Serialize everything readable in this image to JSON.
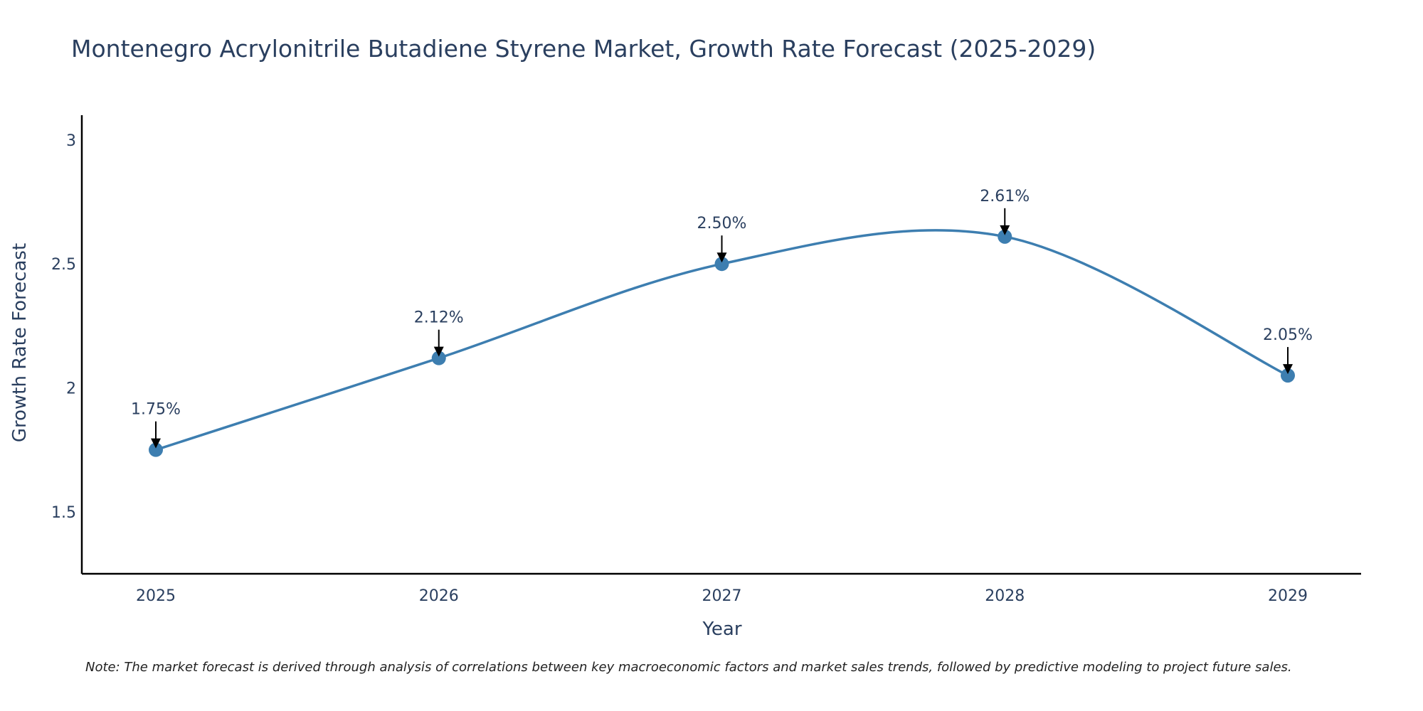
{
  "chart_data": {
    "type": "line",
    "title": "Montenegro Acrylonitrile Butadiene Styrene Market, Growth Rate Forecast (2025-2029)",
    "xlabel": "Year",
    "ylabel": "Growth Rate Forecast",
    "categories": [
      "2025",
      "2026",
      "2027",
      "2028",
      "2029"
    ],
    "values": [
      1.75,
      2.12,
      2.5,
      2.61,
      2.05
    ],
    "data_labels": [
      "1.75%",
      "2.12%",
      "2.50%",
      "2.61%",
      "2.05%"
    ],
    "ylim": [
      1.25,
      3.1
    ],
    "yticks": [
      1.5,
      2,
      2.5,
      3
    ],
    "ytick_labels": [
      "1.5",
      "2",
      "2.5",
      "3"
    ],
    "grid": false,
    "legend": "none",
    "line_shape": "spline",
    "colors": {
      "line": "#3d7eb0",
      "marker": "#3d7eb0",
      "arrow": "#000000",
      "axis": "#000000"
    },
    "note": "Note: The market forecast is derived through analysis of correlations between key macroeconomic factors and market sales trends, followed by predictive modeling to project future sales."
  }
}
